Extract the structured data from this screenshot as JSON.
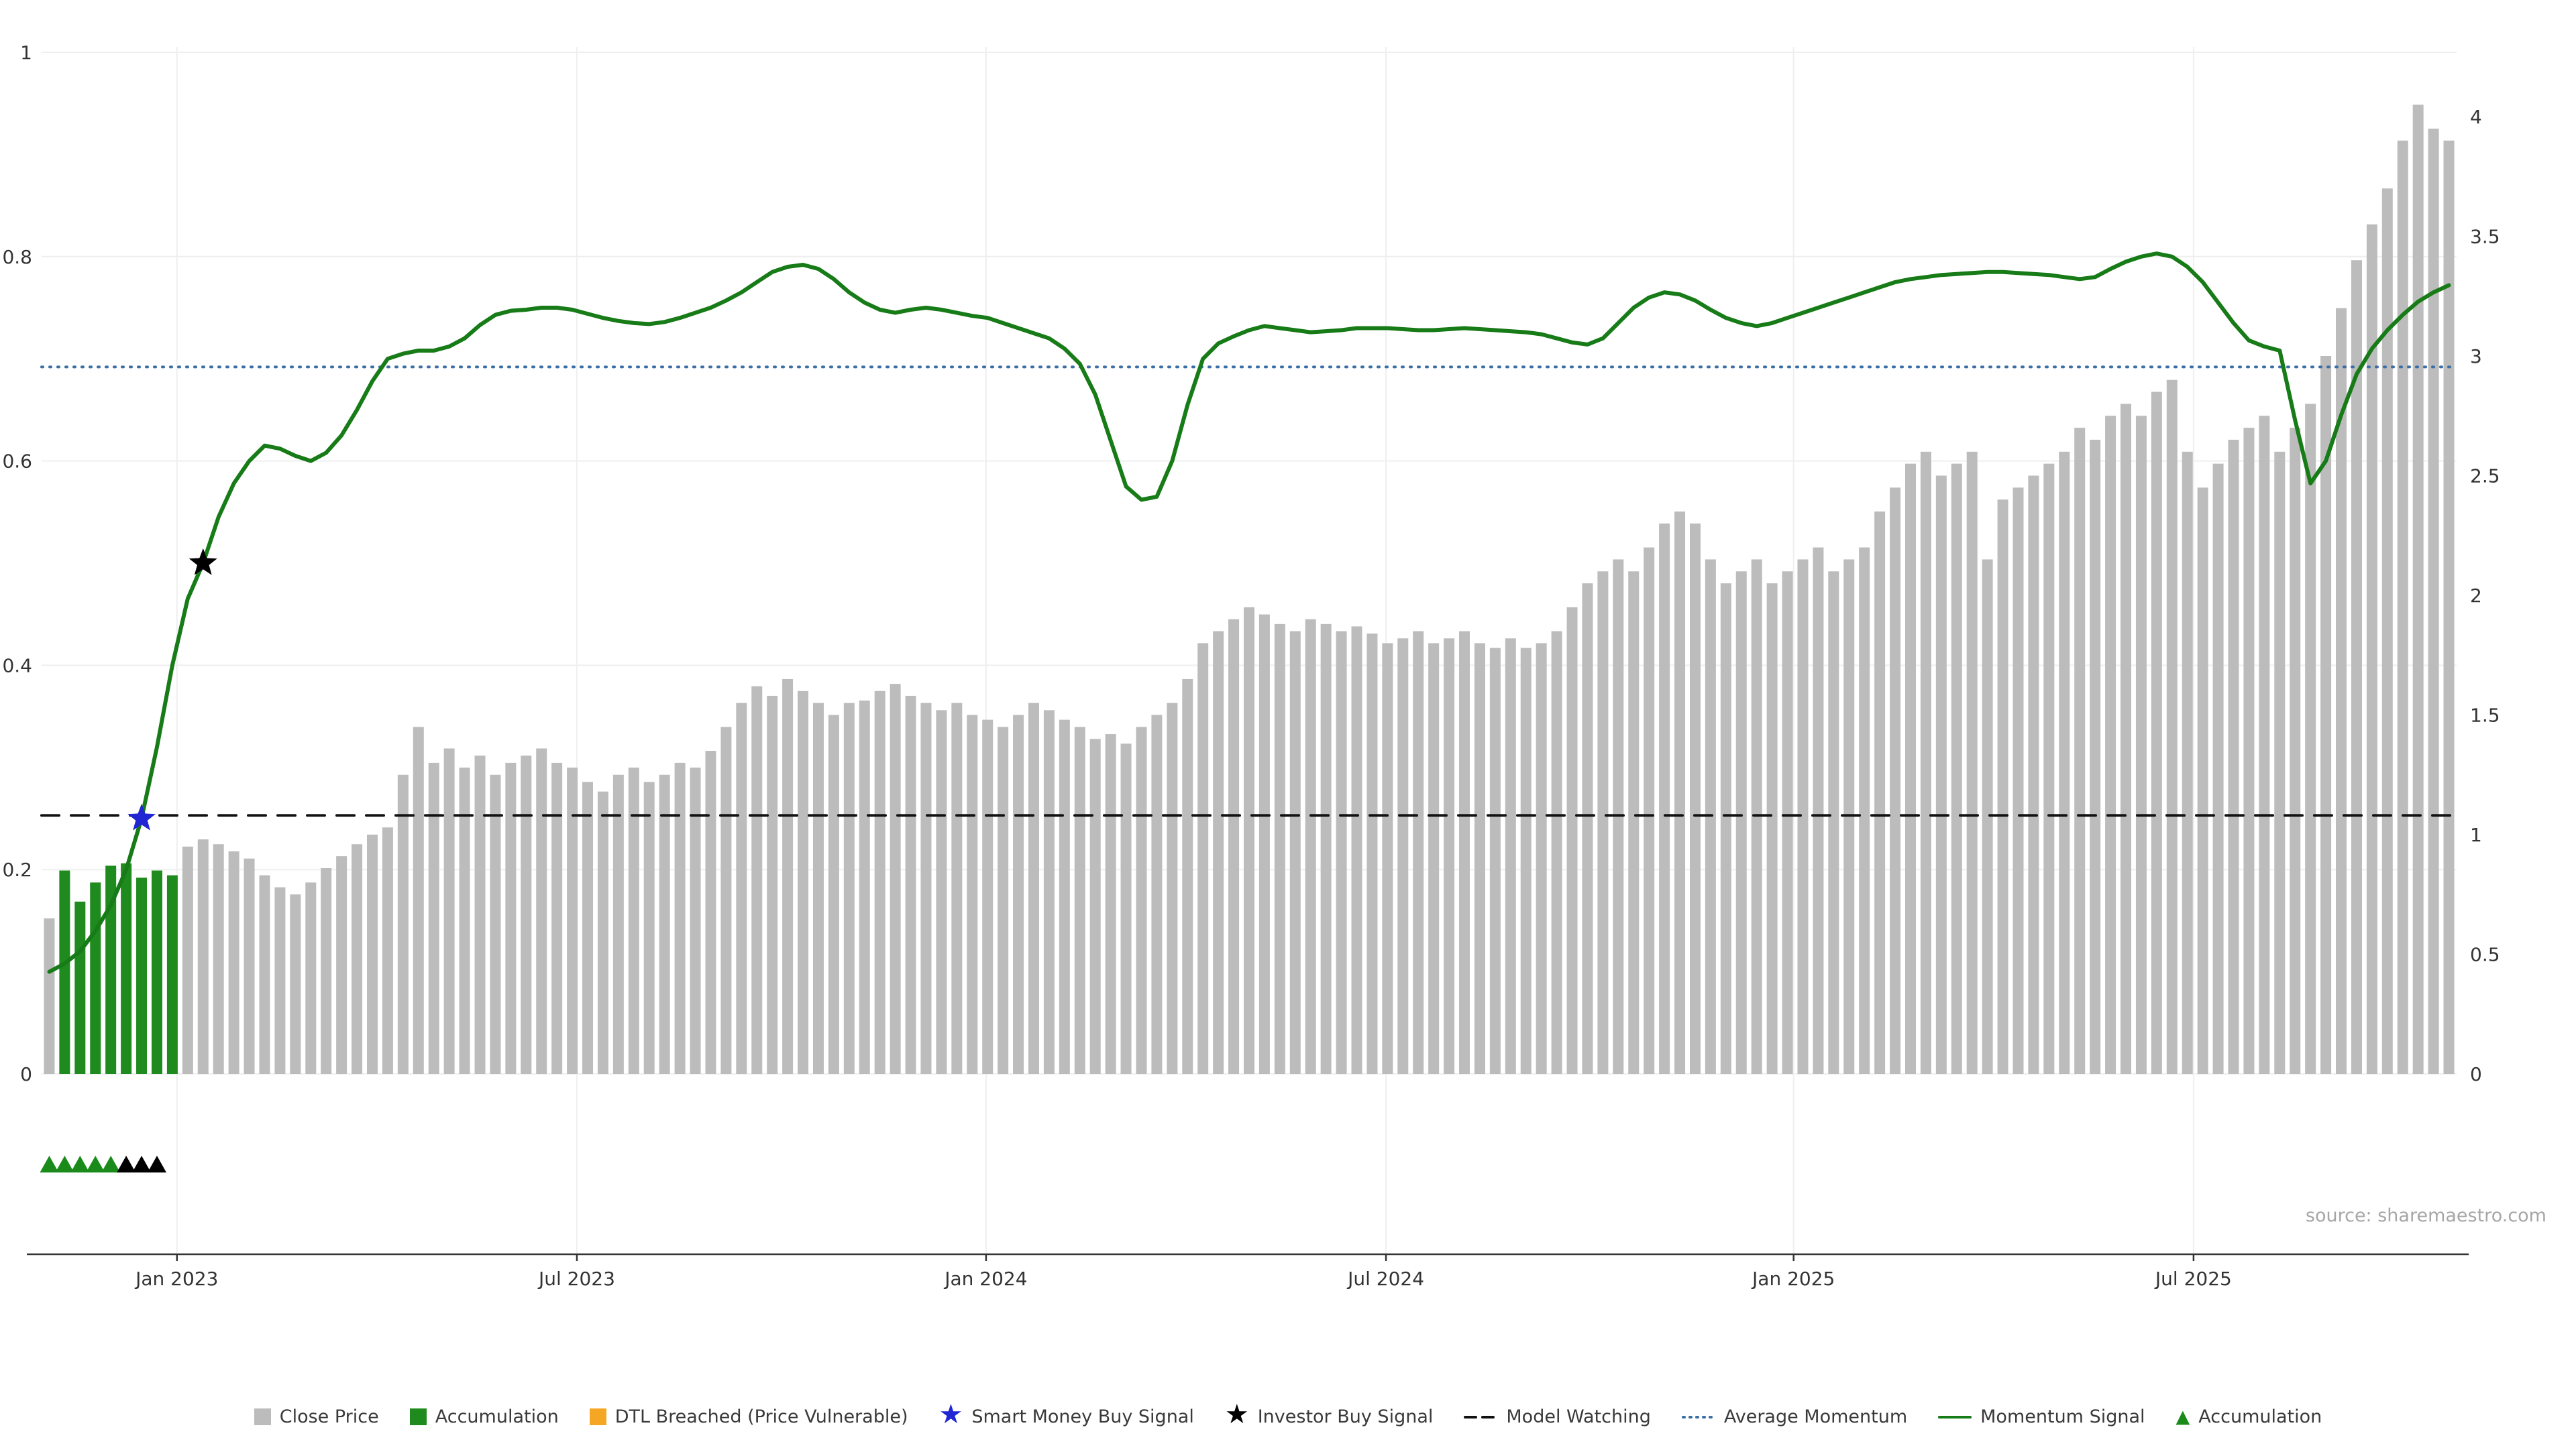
{
  "source_text": "source: sharemaestro.com",
  "colors": {
    "background": "#ffffff",
    "close_price_bar": "#bcbcbc",
    "accumulation_bar": "#1f8b1f",
    "momentum_line": "#177b17",
    "average_momentum_line": "#3a6ea5",
    "model_watching_line": "#111111",
    "smart_money_star": "#2026d2",
    "investor_star": "#000000",
    "dtl_breached": "#f5a623",
    "axis_text": "#333333",
    "grid": "#efefef"
  },
  "chart_data": {
    "type": "bar",
    "title": "",
    "xlabel": "",
    "ylabel_left": "",
    "ylabel_right": "",
    "x_ticks": [
      {
        "label": "Jan 2023",
        "index": 8.3
      },
      {
        "label": "Jul 2023",
        "index": 34.3
      },
      {
        "label": "Jan 2024",
        "index": 60.9
      },
      {
        "label": "Jul 2024",
        "index": 86.9
      },
      {
        "label": "Jan 2025",
        "index": 113.4
      },
      {
        "label": "Jul 2025",
        "index": 139.4
      }
    ],
    "left_axis": {
      "range": [
        0,
        1
      ],
      "ticks": [
        0,
        0.2,
        0.4,
        0.6,
        0.8,
        1
      ],
      "tick_labels": [
        "0",
        "0.2",
        "0.4",
        "0.6",
        "0.8",
        "1"
      ]
    },
    "right_axis": {
      "range": [
        0,
        4
      ],
      "ticks": [
        0,
        0.5,
        1,
        1.5,
        2,
        2.5,
        3,
        3.5,
        4
      ],
      "tick_labels": [
        "0",
        "0.5",
        "1",
        "1.5",
        "2",
        "2.5",
        "3",
        "3.5",
        "4"
      ]
    },
    "series": [
      {
        "name": "Close Price",
        "type": "bar",
        "axis": "right",
        "color": "#bcbcbc",
        "values": [
          0.65,
          0.85,
          0.72,
          0.8,
          0.87,
          0.88,
          0.82,
          0.85,
          0.83,
          0.95,
          0.98,
          0.96,
          0.93,
          0.9,
          0.83,
          0.78,
          0.75,
          0.8,
          0.86,
          0.91,
          0.96,
          1.0,
          1.03,
          1.25,
          1.45,
          1.3,
          1.36,
          1.28,
          1.33,
          1.25,
          1.3,
          1.33,
          1.36,
          1.3,
          1.28,
          1.22,
          1.18,
          1.25,
          1.28,
          1.22,
          1.25,
          1.3,
          1.28,
          1.35,
          1.45,
          1.55,
          1.62,
          1.58,
          1.65,
          1.6,
          1.55,
          1.5,
          1.55,
          1.56,
          1.6,
          1.63,
          1.58,
          1.55,
          1.52,
          1.55,
          1.5,
          1.48,
          1.45,
          1.5,
          1.55,
          1.52,
          1.48,
          1.45,
          1.4,
          1.42,
          1.38,
          1.45,
          1.5,
          1.55,
          1.65,
          1.8,
          1.85,
          1.9,
          1.95,
          1.92,
          1.88,
          1.85,
          1.9,
          1.88,
          1.85,
          1.87,
          1.84,
          1.8,
          1.82,
          1.85,
          1.8,
          1.82,
          1.85,
          1.8,
          1.78,
          1.82,
          1.78,
          1.8,
          1.85,
          1.95,
          2.05,
          2.1,
          2.15,
          2.1,
          2.2,
          2.3,
          2.35,
          2.3,
          2.15,
          2.05,
          2.1,
          2.15,
          2.05,
          2.1,
          2.15,
          2.2,
          2.1,
          2.15,
          2.2,
          2.35,
          2.45,
          2.55,
          2.6,
          2.5,
          2.55,
          2.6,
          2.15,
          2.4,
          2.45,
          2.5,
          2.55,
          2.6,
          2.7,
          2.65,
          2.75,
          2.8,
          2.75,
          2.85,
          2.9,
          2.6,
          2.45,
          2.55,
          2.65,
          2.7,
          2.75,
          2.6,
          2.7,
          2.8,
          3.0,
          3.2,
          3.4,
          3.55,
          3.7,
          3.9,
          4.05,
          3.95,
          3.9
        ]
      },
      {
        "name": "Momentum Signal",
        "type": "line",
        "axis": "left",
        "color": "#177b17",
        "values": [
          0.1,
          0.108,
          0.12,
          0.14,
          0.165,
          0.2,
          0.25,
          0.32,
          0.4,
          0.465,
          0.5,
          0.545,
          0.578,
          0.6,
          0.615,
          0.612,
          0.605,
          0.6,
          0.608,
          0.625,
          0.65,
          0.678,
          0.7,
          0.705,
          0.708,
          0.708,
          0.712,
          0.72,
          0.733,
          0.743,
          0.747,
          0.748,
          0.75,
          0.75,
          0.748,
          0.744,
          0.74,
          0.737,
          0.735,
          0.734,
          0.736,
          0.74,
          0.745,
          0.75,
          0.757,
          0.765,
          0.775,
          0.785,
          0.79,
          0.792,
          0.788,
          0.778,
          0.765,
          0.755,
          0.748,
          0.745,
          0.748,
          0.75,
          0.748,
          0.745,
          0.742,
          0.74,
          0.735,
          0.73,
          0.725,
          0.72,
          0.71,
          0.695,
          0.665,
          0.62,
          0.575,
          0.562,
          0.565,
          0.6,
          0.655,
          0.7,
          0.715,
          0.722,
          0.728,
          0.732,
          0.73,
          0.728,
          0.726,
          0.727,
          0.728,
          0.73,
          0.73,
          0.73,
          0.729,
          0.728,
          0.728,
          0.729,
          0.73,
          0.729,
          0.728,
          0.727,
          0.726,
          0.724,
          0.72,
          0.716,
          0.714,
          0.72,
          0.735,
          0.75,
          0.76,
          0.765,
          0.763,
          0.757,
          0.748,
          0.74,
          0.735,
          0.732,
          0.735,
          0.74,
          0.745,
          0.75,
          0.755,
          0.76,
          0.765,
          0.77,
          0.775,
          0.778,
          0.78,
          0.782,
          0.783,
          0.784,
          0.785,
          0.785,
          0.784,
          0.783,
          0.782,
          0.78,
          0.778,
          0.78,
          0.788,
          0.795,
          0.8,
          0.803,
          0.8,
          0.79,
          0.775,
          0.755,
          0.735,
          0.718,
          0.712,
          0.708,
          0.64,
          0.578,
          0.6,
          0.645,
          0.685,
          0.71,
          0.728,
          0.743,
          0.756,
          0.765,
          0.772
        ]
      }
    ],
    "accumulation_bar_indices": [
      1,
      2,
      3,
      4,
      5,
      6,
      7,
      8
    ],
    "reference_lines": [
      {
        "name": "Model Watching",
        "axis": "left",
        "value": 0.253,
        "style": "dashed",
        "color": "#111111"
      },
      {
        "name": "Average Momentum",
        "axis": "left",
        "value": 0.692,
        "style": "dotted",
        "color": "#3a6ea5"
      }
    ],
    "markers": [
      {
        "name": "Smart Money Buy Signal",
        "index": 6,
        "value": 0.25,
        "axis": "left",
        "shape": "star",
        "color": "#2026d2"
      },
      {
        "name": "Investor Buy Signal",
        "index": 10,
        "value": 0.5,
        "axis": "left",
        "shape": "star",
        "color": "#000000"
      }
    ],
    "triangle_markers": {
      "name": "Accumulation",
      "items": [
        {
          "index": 0,
          "color": "#1a8a1a"
        },
        {
          "index": 1,
          "color": "#1a8a1a"
        },
        {
          "index": 2,
          "color": "#1a8a1a"
        },
        {
          "index": 3,
          "color": "#1a8a1a"
        },
        {
          "index": 4,
          "color": "#1a8a1a"
        },
        {
          "index": 5,
          "color": "#000000"
        },
        {
          "index": 6,
          "color": "#000000"
        },
        {
          "index": 7,
          "color": "#000000"
        }
      ]
    }
  },
  "legend": {
    "items": [
      {
        "label": "Close Price",
        "swatch": "square",
        "color": "#bcbcbc"
      },
      {
        "label": "Accumulation",
        "swatch": "square",
        "color": "#1f8b1f"
      },
      {
        "label": "DTL Breached (Price Vulnerable)",
        "swatch": "square",
        "color": "#f5a623"
      },
      {
        "label": "Smart Money Buy Signal",
        "swatch": "star",
        "color": "#2026d2"
      },
      {
        "label": "Investor Buy Signal",
        "swatch": "star",
        "color": "#000000"
      },
      {
        "label": "Model Watching",
        "swatch": "dash",
        "color": "#111111"
      },
      {
        "label": "Average Momentum",
        "swatch": "dots",
        "color": "#3a6ea5"
      },
      {
        "label": "Momentum Signal",
        "swatch": "line",
        "color": "#177b17"
      },
      {
        "label": "Accumulation",
        "swatch": "triangle",
        "color": "#1a8a1a"
      }
    ]
  }
}
